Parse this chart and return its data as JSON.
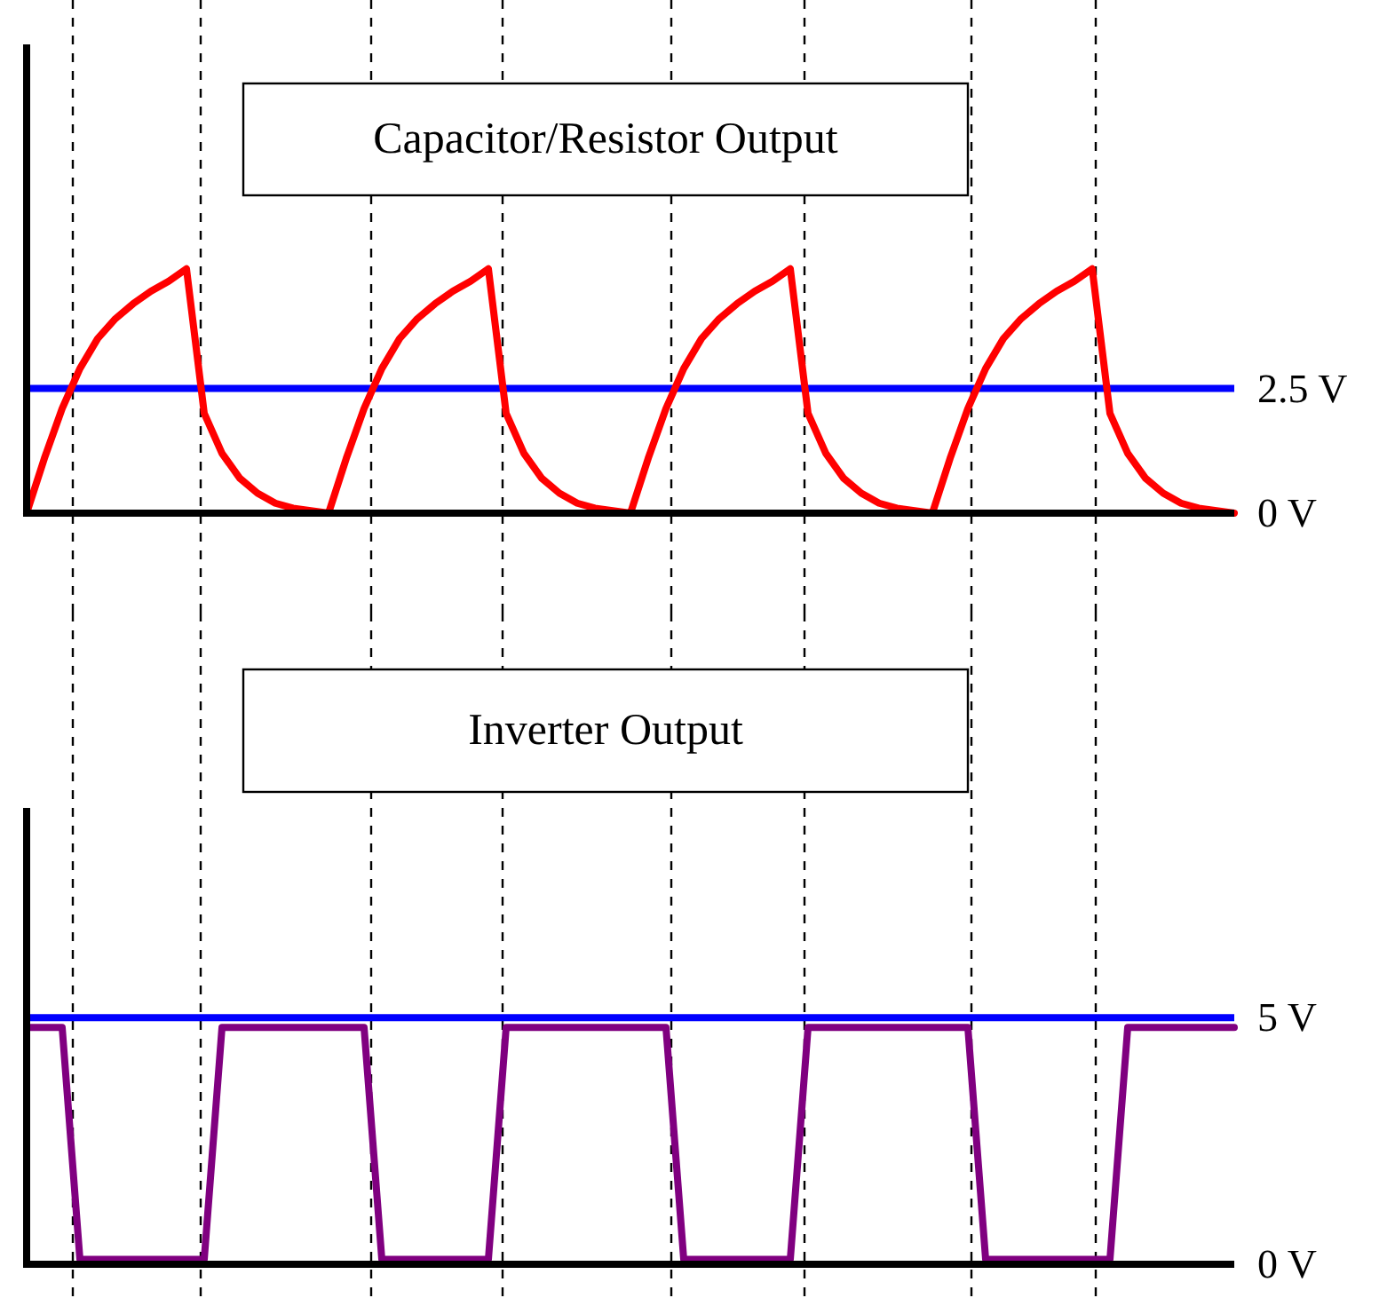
{
  "chart_data": [
    {
      "type": "line",
      "title": "Capacitor/Resistor Output",
      "grid": "x",
      "ylim": [
        0,
        9.4
      ],
      "yticks": [
        {
          "value": 0,
          "label": "0 V"
        },
        {
          "value": 2.5,
          "label": "2.5 V"
        }
      ],
      "tick_labels": "y",
      "categories": [
        null,
        null,
        null,
        null,
        null,
        null,
        null,
        null,
        null,
        null,
        null,
        null,
        null,
        null,
        null,
        null,
        null,
        null,
        null,
        null,
        null,
        null,
        null,
        null,
        null,
        null,
        null,
        null,
        null,
        null,
        null,
        null,
        null,
        null,
        null,
        null,
        null,
        null,
        null,
        null,
        null,
        null,
        null,
        null,
        null,
        null,
        null,
        null,
        null,
        null,
        null,
        null,
        null,
        null,
        null,
        null,
        null,
        null,
        null,
        null,
        null,
        null,
        null,
        null,
        null,
        null,
        null,
        null,
        null
      ],
      "series": [
        {
          "color": "#ff0000",
          "values": [
            0,
            1.1,
            2.1,
            2.9,
            3.5,
            3.9,
            4.2,
            4.45,
            4.65,
            4.9,
            2.0,
            1.2,
            0.7,
            0.4,
            0.2,
            0.1,
            0.05,
            0,
            1.1,
            2.1,
            2.9,
            3.5,
            3.9,
            4.2,
            4.45,
            4.65,
            4.9,
            2.0,
            1.2,
            0.7,
            0.4,
            0.2,
            0.1,
            0.05,
            0,
            1.1,
            2.1,
            2.9,
            3.5,
            3.9,
            4.2,
            4.45,
            4.65,
            4.9,
            2.0,
            1.2,
            0.7,
            0.4,
            0.2,
            0.1,
            0.05,
            0,
            1.1,
            2.1,
            2.9,
            3.5,
            3.9,
            4.2,
            4.45,
            4.65,
            4.9,
            2.0,
            1.2,
            0.7,
            0.4,
            0.2,
            0.1,
            0.05,
            0
          ]
        }
      ],
      "ref_lines": [
        {
          "axis": "y",
          "value": 2.5,
          "color": "#0000ff"
        }
      ]
    },
    {
      "type": "line",
      "title": "Inverter Output",
      "grid": "x",
      "ylim": [
        0,
        9.25
      ],
      "yticks": [
        {
          "value": 0,
          "label": "0 V"
        },
        {
          "value": 5,
          "label": "5 V"
        }
      ],
      "tick_labels": "y",
      "categories": [
        null,
        null,
        null,
        null,
        null,
        null,
        null,
        null,
        null,
        null,
        null,
        null,
        null,
        null,
        null,
        null,
        null,
        null,
        null,
        null,
        null,
        null,
        null,
        null,
        null,
        null,
        null,
        null,
        null,
        null,
        null,
        null,
        null,
        null,
        null,
        null,
        null,
        null,
        null,
        null,
        null,
        null,
        null,
        null,
        null,
        null,
        null,
        null,
        null,
        null,
        null,
        null,
        null,
        null,
        null,
        null,
        null,
        null,
        null,
        null,
        null,
        null,
        null,
        null,
        null,
        null,
        null,
        null,
        null
      ],
      "series": [
        {
          "color": "#800080",
          "values": [
            4.8,
            4.8,
            4.8,
            0.1,
            0.1,
            0.1,
            0.1,
            0.1,
            0.1,
            0.1,
            0.1,
            4.8,
            4.8,
            4.8,
            4.8,
            4.8,
            4.8,
            4.8,
            4.8,
            4.8,
            0.1,
            0.1,
            0.1,
            0.1,
            0.1,
            0.1,
            0.1,
            4.8,
            4.8,
            4.8,
            4.8,
            4.8,
            4.8,
            4.8,
            4.8,
            4.8,
            4.8,
            0.1,
            0.1,
            0.1,
            0.1,
            0.1,
            0.1,
            0.1,
            4.8,
            4.8,
            4.8,
            4.8,
            4.8,
            4.8,
            4.8,
            4.8,
            4.8,
            4.8,
            0.1,
            0.1,
            0.1,
            0.1,
            0.1,
            0.1,
            0.1,
            0.1,
            4.8,
            4.8,
            4.8,
            4.8,
            4.8,
            4.8,
            4.8
          ]
        }
      ],
      "ref_lines": [
        {
          "axis": "y",
          "value": 5,
          "color": "#0000ff"
        }
      ]
    }
  ]
}
